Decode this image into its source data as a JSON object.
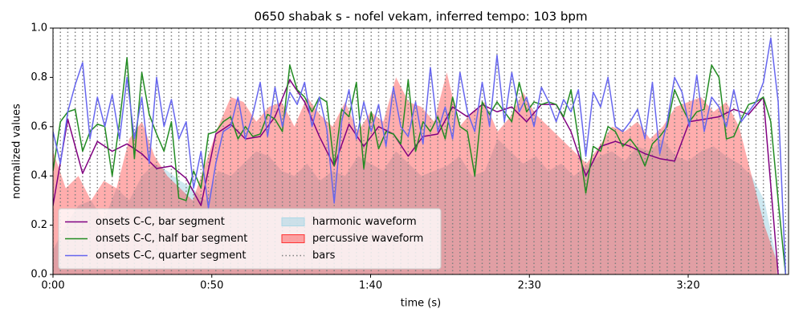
{
  "chart_data": {
    "type": "line",
    "title": "0650 shabak s - nofel vekam, inferred tempo: 103 bpm",
    "x_label": "time (s)",
    "y_label": "normalized values",
    "xlim": [
      0,
      231.6
    ],
    "ylim": [
      0,
      1
    ],
    "xticks": [
      {
        "value": 0,
        "label": "0:00"
      },
      {
        "value": 50,
        "label": "0:50"
      },
      {
        "value": 100,
        "label": "1:40"
      },
      {
        "value": 150,
        "label": "2:30"
      },
      {
        "value": 200,
        "label": "3:20"
      }
    ],
    "yticks": [
      {
        "value": 0,
        "label": "0.0"
      },
      0.2,
      0.4,
      0.6,
      0.8,
      {
        "value": 1,
        "label": "1.0"
      }
    ],
    "grid": false,
    "legend": "lower left",
    "series": [
      {
        "name": "onsets C-C, bar segment",
        "color": "#800080",
        "style": "line",
        "x": [
          0,
          4.66,
          9.32,
          13.98,
          18.64,
          23.3,
          27.96,
          32.62,
          37.28,
          41.94,
          46.6,
          51.26,
          55.92,
          60.58,
          65.24,
          69.9,
          74.56,
          79.22,
          83.88,
          88.54,
          93.2,
          97.86,
          102.52,
          107.18,
          111.84,
          116.5,
          121.16,
          125.82,
          130.48,
          135.14,
          139.8,
          144.46,
          149.12,
          153.78,
          158.44,
          163.1,
          167.76,
          172.42,
          177.08,
          181.74,
          186.4,
          191.06,
          195.72,
          200.38,
          205.04,
          209.7,
          214.36,
          219.02,
          223.68,
          228.34
        ],
        "values": [
          0.28,
          0.63,
          0.41,
          0.54,
          0.5,
          0.53,
          0.49,
          0.43,
          0.44,
          0.39,
          0.28,
          0.57,
          0.61,
          0.55,
          0.56,
          0.64,
          0.79,
          0.7,
          0.56,
          0.44,
          0.61,
          0.52,
          0.6,
          0.57,
          0.48,
          0.56,
          0.57,
          0.68,
          0.64,
          0.69,
          0.66,
          0.68,
          0.62,
          0.69,
          0.69,
          0.58,
          0.4,
          0.52,
          0.54,
          0.52,
          0.49,
          0.47,
          0.46,
          0.62,
          0.63,
          0.64,
          0.67,
          0.65,
          0.72,
          0
        ]
      },
      {
        "name": "onsets C-C, half bar segment",
        "color": "#228b22",
        "style": "line",
        "x": [
          0,
          2.33,
          4.66,
          6.99,
          9.32,
          11.65,
          13.98,
          16.31,
          18.64,
          20.97,
          23.3,
          25.63,
          27.96,
          30.29,
          32.62,
          34.95,
          37.28,
          39.61,
          41.94,
          44.27,
          46.6,
          48.93,
          51.26,
          53.59,
          55.92,
          58.25,
          60.58,
          62.91,
          65.24,
          67.57,
          69.9,
          72.23,
          74.56,
          76.89,
          79.22,
          81.55,
          83.88,
          86.21,
          88.54,
          90.87,
          93.2,
          95.53,
          97.86,
          100.19,
          102.52,
          104.85,
          107.18,
          109.51,
          111.84,
          114.17,
          116.5,
          118.83,
          121.16,
          123.49,
          125.82,
          128.15,
          130.48,
          132.81,
          135.14,
          137.47,
          139.8,
          142.13,
          144.46,
          146.79,
          149.12,
          151.45,
          153.78,
          156.11,
          158.44,
          160.77,
          163.1,
          165.43,
          167.76,
          170.09,
          172.42,
          174.75,
          177.08,
          179.41,
          181.74,
          184.07,
          186.4,
          188.73,
          191.06,
          193.39,
          195.72,
          198.05,
          200.38,
          202.71,
          205.04,
          207.37,
          209.7,
          212.03,
          214.36,
          216.69,
          219.02,
          221.35,
          223.68,
          226.01,
          228.34,
          230.67
        ],
        "values": [
          0.42,
          0.62,
          0.66,
          0.67,
          0.5,
          0.58,
          0.61,
          0.6,
          0.4,
          0.62,
          0.88,
          0.47,
          0.82,
          0.65,
          0.57,
          0.5,
          0.62,
          0.31,
          0.3,
          0.42,
          0.35,
          0.57,
          0.58,
          0.62,
          0.64,
          0.55,
          0.6,
          0.56,
          0.57,
          0.65,
          0.63,
          0.58,
          0.85,
          0.75,
          0.72,
          0.66,
          0.72,
          0.7,
          0.44,
          0.67,
          0.64,
          0.78,
          0.43,
          0.66,
          0.51,
          0.58,
          0.57,
          0.53,
          0.79,
          0.5,
          0.62,
          0.58,
          0.64,
          0.55,
          0.72,
          0.6,
          0.58,
          0.4,
          0.7,
          0.65,
          0.7,
          0.66,
          0.62,
          0.78,
          0.66,
          0.7,
          0.69,
          0.7,
          0.69,
          0.64,
          0.75,
          0.55,
          0.33,
          0.52,
          0.5,
          0.6,
          0.58,
          0.52,
          0.55,
          0.51,
          0.44,
          0.53,
          0.56,
          0.6,
          0.75,
          0.68,
          0.62,
          0.66,
          0.67,
          0.85,
          0.8,
          0.55,
          0.56,
          0.63,
          0.69,
          0.7,
          0.72,
          0.62,
          0.3,
          0
        ]
      },
      {
        "name": "onsets C-C, quarter segment",
        "color": "#6666ee",
        "style": "line",
        "x": [
          0,
          2.33,
          4.66,
          6.99,
          9.32,
          11.65,
          13.98,
          16.31,
          18.64,
          20.97,
          23.3,
          25.63,
          27.96,
          30.29,
          32.62,
          34.95,
          37.28,
          39.61,
          41.94,
          44.27,
          46.6,
          48.93,
          51.26,
          53.59,
          55.92,
          58.25,
          60.58,
          62.91,
          65.24,
          67.57,
          69.9,
          72.23,
          74.56,
          76.89,
          79.22,
          81.55,
          83.88,
          86.21,
          88.54,
          90.87,
          93.2,
          95.53,
          97.86,
          100.19,
          102.52,
          104.85,
          107.18,
          109.51,
          111.84,
          114.17,
          116.5,
          118.83,
          121.16,
          123.49,
          125.82,
          128.15,
          130.48,
          132.81,
          135.14,
          137.47,
          139.8,
          142.13,
          144.46,
          146.79,
          149.12,
          151.45,
          153.78,
          156.11,
          158.44,
          160.77,
          163.1,
          165.43,
          167.76,
          170.09,
          172.42,
          174.75,
          177.08,
          179.41,
          181.74,
          184.07,
          186.4,
          188.73,
          191.06,
          193.39,
          195.72,
          198.05,
          200.38,
          202.71,
          205.04,
          207.37,
          209.7,
          212.03,
          214.36,
          216.69,
          219.02,
          221.35,
          223.68,
          226.01,
          228.34,
          230.67
        ],
        "values": [
          0.58,
          0.45,
          0.66,
          0.77,
          0.86,
          0.55,
          0.72,
          0.6,
          0.73,
          0.55,
          0.8,
          0.55,
          0.72,
          0.45,
          0.8,
          0.6,
          0.71,
          0.55,
          0.62,
          0.35,
          0.5,
          0.27,
          0.45,
          0.58,
          0.6,
          0.72,
          0.55,
          0.65,
          0.78,
          0.56,
          0.76,
          0.6,
          0.74,
          0.69,
          0.78,
          0.6,
          0.72,
          0.59,
          0.29,
          0.62,
          0.75,
          0.55,
          0.7,
          0.58,
          0.69,
          0.52,
          0.76,
          0.6,
          0.56,
          0.7,
          0.53,
          0.84,
          0.58,
          0.68,
          0.55,
          0.82,
          0.66,
          0.58,
          0.78,
          0.6,
          0.89,
          0.62,
          0.82,
          0.66,
          0.72,
          0.6,
          0.76,
          0.7,
          0.62,
          0.71,
          0.66,
          0.75,
          0.48,
          0.74,
          0.68,
          0.8,
          0.6,
          0.58,
          0.62,
          0.67,
          0.55,
          0.78,
          0.49,
          0.62,
          0.8,
          0.74,
          0.6,
          0.81,
          0.58,
          0.72,
          0.68,
          0.6,
          0.75,
          0.62,
          0.66,
          0.7,
          0.78,
          0.96,
          0.7,
          0
        ]
      },
      {
        "name": "harmonic waveform",
        "color": "#add8e6",
        "alpha": 0.6,
        "style": "area",
        "x": [
          0,
          4,
          8,
          12,
          16,
          20,
          24,
          28,
          32,
          36,
          40,
          44,
          48,
          52,
          56,
          60,
          64,
          68,
          72,
          76,
          80,
          84,
          88,
          92,
          96,
          100,
          104,
          108,
          112,
          116,
          120,
          124,
          128,
          132,
          136,
          140,
          144,
          148,
          152,
          156,
          160,
          164,
          168,
          172,
          176,
          180,
          184,
          188,
          192,
          196,
          200,
          204,
          208,
          212,
          216,
          220,
          224,
          228
        ],
        "values": [
          0.1,
          0.2,
          0.28,
          0.3,
          0.22,
          0.35,
          0.3,
          0.4,
          0.45,
          0.42,
          0.38,
          0.35,
          0.3,
          0.42,
          0.4,
          0.45,
          0.5,
          0.48,
          0.42,
          0.4,
          0.45,
          0.38,
          0.42,
          0.4,
          0.48,
          0.45,
          0.42,
          0.5,
          0.45,
          0.4,
          0.42,
          0.44,
          0.48,
          0.4,
          0.42,
          0.55,
          0.5,
          0.45,
          0.48,
          0.42,
          0.45,
          0.4,
          0.44,
          0.48,
          0.5,
          0.46,
          0.52,
          0.5,
          0.55,
          0.48,
          0.46,
          0.5,
          0.52,
          0.48,
          0.45,
          0.4,
          0.3,
          0.05
        ]
      },
      {
        "name": "percussive waveform",
        "color": "#ff3333",
        "alpha": 0.4,
        "style": "area",
        "x": [
          0,
          4,
          8,
          12,
          16,
          20,
          24,
          28,
          32,
          36,
          40,
          44,
          48,
          52,
          56,
          60,
          64,
          68,
          72,
          76,
          80,
          84,
          88,
          92,
          96,
          100,
          104,
          108,
          112,
          116,
          120,
          124,
          128,
          132,
          136,
          140,
          144,
          148,
          152,
          156,
          160,
          164,
          168,
          172,
          176,
          180,
          184,
          188,
          192,
          196,
          200,
          204,
          208,
          212,
          216,
          220,
          224,
          228
        ],
        "values": [
          0.5,
          0.35,
          0.4,
          0.3,
          0.38,
          0.35,
          0.55,
          0.62,
          0.48,
          0.4,
          0.35,
          0.3,
          0.45,
          0.6,
          0.72,
          0.7,
          0.62,
          0.68,
          0.7,
          0.6,
          0.72,
          0.65,
          0.6,
          0.7,
          0.58,
          0.66,
          0.62,
          0.8,
          0.7,
          0.68,
          0.62,
          0.82,
          0.6,
          0.66,
          0.7,
          0.58,
          0.64,
          0.74,
          0.65,
          0.6,
          0.55,
          0.5,
          0.45,
          0.52,
          0.6,
          0.58,
          0.62,
          0.55,
          0.6,
          0.68,
          0.7,
          0.72,
          0.66,
          0.7,
          0.6,
          0.4,
          0.2,
          0.05
        ]
      },
      {
        "name": "bars",
        "color": "#808080",
        "style": "vlines",
        "x": [
          0,
          2.33,
          4.66,
          6.99,
          9.32,
          11.65,
          13.98,
          16.31,
          18.64,
          20.97,
          23.3,
          25.63,
          27.96,
          30.29,
          32.62,
          34.95,
          37.28,
          39.61,
          41.94,
          44.27,
          46.6,
          48.93,
          51.26,
          53.59,
          55.92,
          58.25,
          60.58,
          62.91,
          65.24,
          67.57,
          69.9,
          72.23,
          74.56,
          76.89,
          79.22,
          81.55,
          83.88,
          86.21,
          88.54,
          90.87,
          93.2,
          95.53,
          97.86,
          100.19,
          102.52,
          104.85,
          107.18,
          109.51,
          111.84,
          114.17,
          116.5,
          118.83,
          121.16,
          123.49,
          125.82,
          128.15,
          130.48,
          132.81,
          135.14,
          137.47,
          139.8,
          142.13,
          144.46,
          146.79,
          149.12,
          151.45,
          153.78,
          156.11,
          158.44,
          160.77,
          163.1,
          165.43,
          167.76,
          170.09,
          172.42,
          174.75,
          177.08,
          179.41,
          181.74,
          184.07,
          186.4,
          188.73,
          191.06,
          193.39,
          195.72,
          198.05,
          200.38,
          202.71,
          205.04,
          207.37,
          209.7,
          212.03,
          214.36,
          216.69,
          219.02,
          221.35,
          223.68,
          226.01,
          228.34,
          230.67
        ]
      }
    ]
  }
}
